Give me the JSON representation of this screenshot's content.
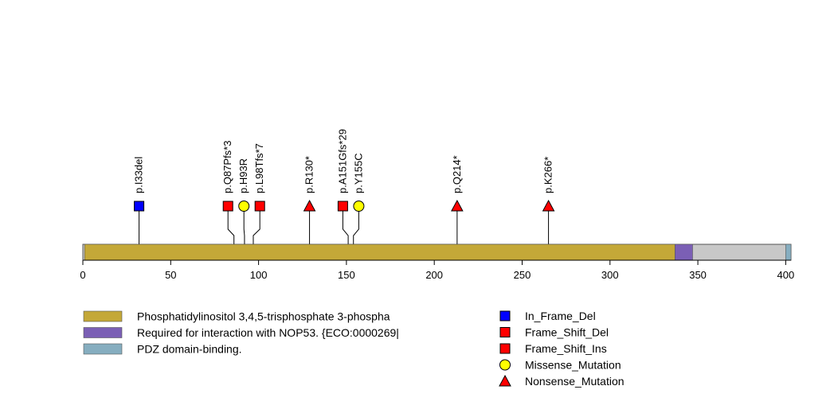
{
  "chart_data": {
    "type": "lollipop",
    "protein_length": 403,
    "x_ticks": [
      0,
      50,
      100,
      150,
      200,
      250,
      300,
      350,
      400
    ],
    "domains": [
      {
        "name": "Phosphatidylinositol 3,4,5-trisphosphate 3-phospha",
        "start": 1,
        "end": 337,
        "color": "#C4A838"
      },
      {
        "name": "Required for interaction with NOP53. {ECO:0000269|",
        "start": 337,
        "end": 347,
        "color": "#7B5FB5"
      },
      {
        "name": "PDZ domain-binding.",
        "start": 400,
        "end": 403,
        "color": "#86AEC0"
      }
    ],
    "mutations": [
      {
        "label": "p.I33del",
        "position": 32,
        "type": "In_Frame_Del"
      },
      {
        "label": "p.Q87Pfs*3",
        "position": 86,
        "type": "Frame_Shift_Del"
      },
      {
        "label": "p.H93R",
        "position": 92,
        "type": "Missense_Mutation"
      },
      {
        "label": "p.L98Tfs*7",
        "position": 97,
        "type": "Frame_Shift_Ins"
      },
      {
        "label": "p.R130*",
        "position": 129,
        "type": "Nonsense_Mutation"
      },
      {
        "label": "p.A151Gfs*29",
        "position": 151,
        "type": "Frame_Shift_Del"
      },
      {
        "label": "p.Y155C",
        "position": 154,
        "type": "Missense_Mutation"
      },
      {
        "label": "p.Q214*",
        "position": 213,
        "type": "Nonsense_Mutation"
      },
      {
        "label": "p.K266*",
        "position": 265,
        "type": "Nonsense_Mutation"
      }
    ],
    "mutation_legend": [
      {
        "type": "In_Frame_Del",
        "shape": "square",
        "color": "#0000FF"
      },
      {
        "type": "Frame_Shift_Del",
        "shape": "square",
        "color": "#FF0000"
      },
      {
        "type": "Frame_Shift_Ins",
        "shape": "square",
        "color": "#FF0000"
      },
      {
        "type": "Missense_Mutation",
        "shape": "circle",
        "color": "#FFFF00"
      },
      {
        "type": "Nonsense_Mutation",
        "shape": "triangle",
        "color": "#FF0000"
      }
    ]
  }
}
